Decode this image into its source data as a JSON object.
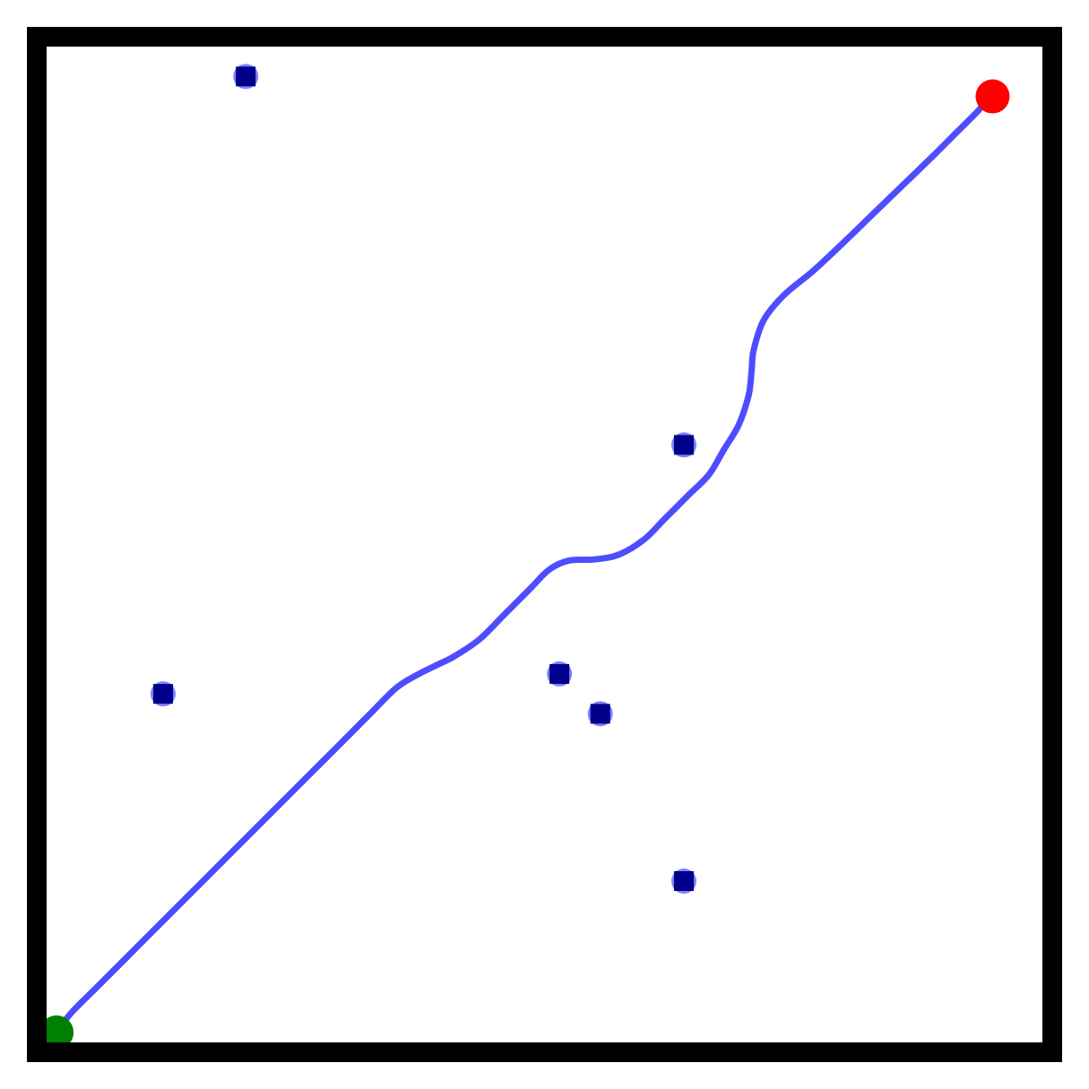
{
  "colors": {
    "background": "#ffffff",
    "border": "#000000",
    "path": "#4d4dff",
    "obstacle_fill": "#00008b",
    "obstacle_halo": "#6b6bff",
    "start": "#008000",
    "goal": "#ff0000"
  },
  "world": {
    "x_range": [
      0,
      100
    ],
    "y_range": [
      0,
      100
    ]
  },
  "start": {
    "x": 1.0,
    "y": 1.0
  },
  "goal": {
    "x": 95.0,
    "y": 95.0
  },
  "obstacles": [
    {
      "x": 20.0,
      "y": 97.0
    },
    {
      "x": 64.0,
      "y": 60.0
    },
    {
      "x": 11.7,
      "y": 35.0
    },
    {
      "x": 51.5,
      "y": 37.0
    },
    {
      "x": 55.6,
      "y": 33.0
    },
    {
      "x": 64.0,
      "y": 16.2
    }
  ],
  "path": [
    [
      1.0,
      1.0
    ],
    [
      2.5,
      3.0
    ],
    [
      5.0,
      5.5
    ],
    [
      8.0,
      8.5
    ],
    [
      12.0,
      12.5
    ],
    [
      16.0,
      16.5
    ],
    [
      20.0,
      20.5
    ],
    [
      24.0,
      24.5
    ],
    [
      28.0,
      28.5
    ],
    [
      32.0,
      32.5
    ],
    [
      35.0,
      35.5
    ],
    [
      37.0,
      36.8
    ],
    [
      39.0,
      37.8
    ],
    [
      41.0,
      38.8
    ],
    [
      43.5,
      40.5
    ],
    [
      46.0,
      43.0
    ],
    [
      48.5,
      45.5
    ],
    [
      50.5,
      47.5
    ],
    [
      52.5,
      48.4
    ],
    [
      55.0,
      48.5
    ],
    [
      57.5,
      49.0
    ],
    [
      60.0,
      50.5
    ],
    [
      62.0,
      52.5
    ],
    [
      64.5,
      55.0
    ],
    [
      66.5,
      57.0
    ],
    [
      68.0,
      59.5
    ],
    [
      69.5,
      62.0
    ],
    [
      70.5,
      65.0
    ],
    [
      70.8,
      67.5
    ],
    [
      71.0,
      69.5
    ],
    [
      72.0,
      72.5
    ],
    [
      74.0,
      75.0
    ],
    [
      77.0,
      77.5
    ],
    [
      80.0,
      80.3
    ],
    [
      83.0,
      83.2
    ],
    [
      86.0,
      86.1
    ],
    [
      89.0,
      89.0
    ],
    [
      91.5,
      91.5
    ],
    [
      93.5,
      93.5
    ],
    [
      94.5,
      94.7
    ],
    [
      95.0,
      95.0
    ]
  ]
}
